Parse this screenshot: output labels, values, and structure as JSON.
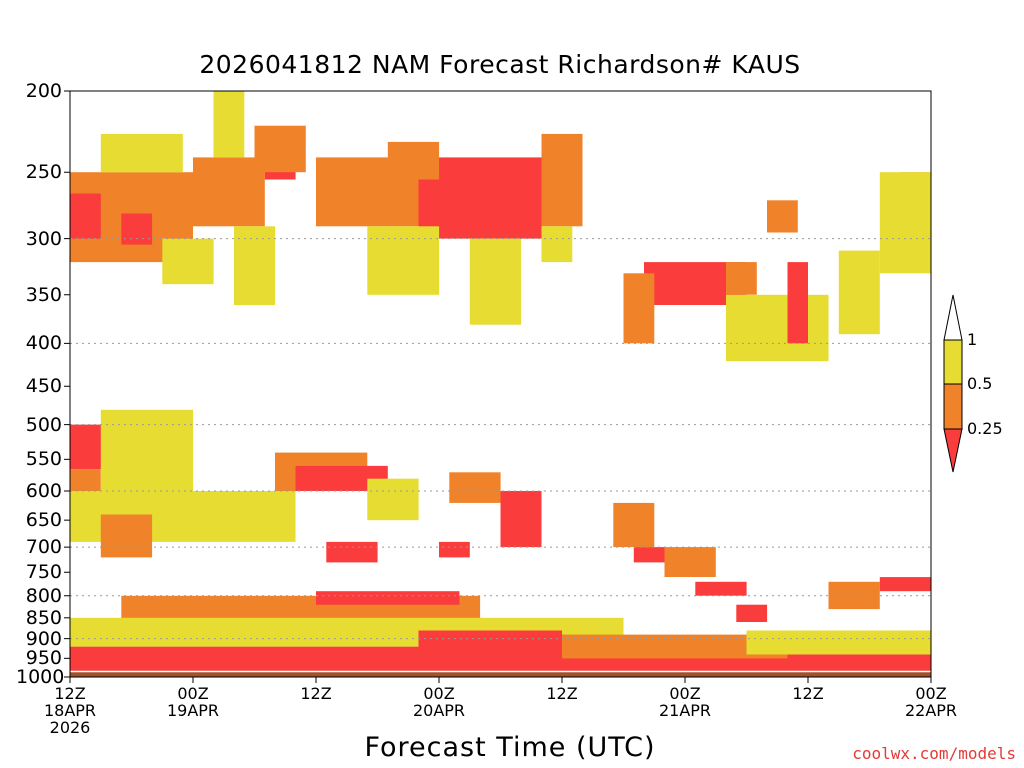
{
  "chart_data": {
    "type": "heatmap",
    "title": "2026041812 NAM Forecast Richardson# KAUS",
    "xlabel": "Forecast Time (UTC)",
    "ylabel": "",
    "y_scale": "log-pressure",
    "ylim": [
      1000,
      200
    ],
    "y_ticks": [
      "200",
      "250",
      "300",
      "350",
      "400",
      "450",
      "500",
      "550",
      "600",
      "650",
      "700",
      "750",
      "800",
      "850",
      "900",
      "950",
      "1000"
    ],
    "y_gridlines": [
      300,
      400,
      500,
      600,
      700,
      800,
      900
    ],
    "x_range_hours": [
      0,
      84
    ],
    "x_ticks": [
      {
        "hour": 0,
        "line1": "12Z",
        "line2": "18APR",
        "line3": "2026"
      },
      {
        "hour": 12,
        "line1": "00Z",
        "line2": "19APR",
        "line3": ""
      },
      {
        "hour": 24,
        "line1": "12Z",
        "line2": "",
        "line3": ""
      },
      {
        "hour": 36,
        "line1": "00Z",
        "line2": "20APR",
        "line3": ""
      },
      {
        "hour": 48,
        "line1": "12Z",
        "line2": "",
        "line3": ""
      },
      {
        "hour": 60,
        "line1": "00Z",
        "line2": "21APR",
        "line3": ""
      },
      {
        "hour": 72,
        "line1": "12Z",
        "line2": "",
        "line3": ""
      },
      {
        "hour": 84,
        "line1": "00Z",
        "line2": "22APR",
        "line3": ""
      }
    ],
    "colorbar": {
      "levels": [
        "1",
        "0.5",
        "0.25"
      ],
      "bins": [
        {
          "range": "0.5-1",
          "color": "#e6dc32"
        },
        {
          "range": "0.25-0.5",
          "color": "#f0822a"
        },
        {
          "range": "<0.25",
          "color": "#fa3c3c"
        }
      ]
    },
    "ground_color": "#a0522d",
    "regions": [
      {
        "class": 2,
        "t0": 0,
        "t1": 12,
        "p0": 250,
        "p1": 320
      },
      {
        "class": 3,
        "t0": 0,
        "t1": 3,
        "p0": 265,
        "p1": 300
      },
      {
        "class": 3,
        "t0": 5,
        "t1": 8,
        "p0": 280,
        "p1": 305
      },
      {
        "class": 1,
        "t0": 3,
        "t1": 11,
        "p0": 225,
        "p1": 250
      },
      {
        "class": 1,
        "t0": 9,
        "t1": 14,
        "p0": 300,
        "p1": 340
      },
      {
        "class": 2,
        "t0": 12,
        "t1": 19,
        "p0": 240,
        "p1": 290
      },
      {
        "class": 1,
        "t0": 14,
        "t1": 17,
        "p0": 200,
        "p1": 240
      },
      {
        "class": 3,
        "t0": 19,
        "t1": 22,
        "p0": 225,
        "p1": 255
      },
      {
        "class": 2,
        "t0": 18,
        "t1": 23,
        "p0": 220,
        "p1": 250
      },
      {
        "class": 1,
        "t0": 16,
        "t1": 20,
        "p0": 290,
        "p1": 360
      },
      {
        "class": 2,
        "t0": 24,
        "t1": 34,
        "p0": 240,
        "p1": 290
      },
      {
        "class": 3,
        "t0": 34,
        "t1": 46,
        "p0": 240,
        "p1": 300
      },
      {
        "class": 2,
        "t0": 31,
        "t1": 36,
        "p0": 230,
        "p1": 255
      },
      {
        "class": 1,
        "t0": 29,
        "t1": 36,
        "p0": 290,
        "p1": 350
      },
      {
        "class": 1,
        "t0": 39,
        "t1": 44,
        "p0": 300,
        "p1": 380
      },
      {
        "class": 2,
        "t0": 46,
        "t1": 50,
        "p0": 225,
        "p1": 290
      },
      {
        "class": 1,
        "t0": 46,
        "t1": 49,
        "p0": 290,
        "p1": 320
      },
      {
        "class": 3,
        "t0": 56,
        "t1": 66,
        "p0": 320,
        "p1": 360
      },
      {
        "class": 2,
        "t0": 54,
        "t1": 57,
        "p0": 330,
        "p1": 400
      },
      {
        "class": 2,
        "t0": 64,
        "t1": 67,
        "p0": 320,
        "p1": 350
      },
      {
        "class": 1,
        "t0": 64,
        "t1": 74,
        "p0": 350,
        "p1": 420
      },
      {
        "class": 3,
        "t0": 70,
        "t1": 72,
        "p0": 320,
        "p1": 400
      },
      {
        "class": 2,
        "t0": 68,
        "t1": 71,
        "p0": 270,
        "p1": 295
      },
      {
        "class": 1,
        "t0": 75,
        "t1": 79,
        "p0": 310,
        "p1": 390
      },
      {
        "class": 2,
        "t0": 81,
        "t1": 84,
        "p0": 250,
        "p1": 290
      },
      {
        "class": 1,
        "t0": 79,
        "t1": 84,
        "p0": 250,
        "p1": 330
      },
      {
        "class": 3,
        "t0": 0,
        "t1": 5,
        "p0": 500,
        "p1": 565
      },
      {
        "class": 2,
        "t0": 0,
        "t1": 3,
        "p0": 565,
        "p1": 640
      },
      {
        "class": 1,
        "t0": 3,
        "t1": 12,
        "p0": 480,
        "p1": 610
      },
      {
        "class": 1,
        "t0": 0,
        "t1": 22,
        "p0": 600,
        "p1": 690
      },
      {
        "class": 2,
        "t0": 3,
        "t1": 8,
        "p0": 640,
        "p1": 720
      },
      {
        "class": 2,
        "t0": 20,
        "t1": 29,
        "p0": 540,
        "p1": 600
      },
      {
        "class": 3,
        "t0": 22,
        "t1": 31,
        "p0": 560,
        "p1": 600
      },
      {
        "class": 1,
        "t0": 29,
        "t1": 34,
        "p0": 580,
        "p1": 650
      },
      {
        "class": 3,
        "t0": 25,
        "t1": 30,
        "p0": 690,
        "p1": 730
      },
      {
        "class": 2,
        "t0": 37,
        "t1": 42,
        "p0": 570,
        "p1": 620
      },
      {
        "class": 3,
        "t0": 42,
        "t1": 46,
        "p0": 600,
        "p1": 700
      },
      {
        "class": 3,
        "t0": 36,
        "t1": 39,
        "p0": 690,
        "p1": 720
      },
      {
        "class": 2,
        "t0": 53,
        "t1": 57,
        "p0": 620,
        "p1": 700
      },
      {
        "class": 3,
        "t0": 55,
        "t1": 58,
        "p0": 700,
        "p1": 730
      },
      {
        "class": 2,
        "t0": 58,
        "t1": 63,
        "p0": 700,
        "p1": 760
      },
      {
        "class": 3,
        "t0": 61,
        "t1": 66,
        "p0": 770,
        "p1": 800
      },
      {
        "class": 3,
        "t0": 65,
        "t1": 68,
        "p0": 820,
        "p1": 860
      },
      {
        "class": 2,
        "t0": 74,
        "t1": 79,
        "p0": 770,
        "p1": 830
      },
      {
        "class": 3,
        "t0": 79,
        "t1": 84,
        "p0": 760,
        "p1": 790
      },
      {
        "class": 3,
        "t0": 0,
        "t1": 84,
        "p0": 920,
        "p1": 990
      },
      {
        "class": 2,
        "t0": 5,
        "t1": 40,
        "p0": 800,
        "p1": 880
      },
      {
        "class": 3,
        "t0": 24,
        "t1": 38,
        "p0": 790,
        "p1": 820
      },
      {
        "class": 1,
        "t0": 0,
        "t1": 54,
        "p0": 850,
        "p1": 920
      },
      {
        "class": 3,
        "t0": 34,
        "t1": 48,
        "p0": 880,
        "p1": 960
      },
      {
        "class": 2,
        "t0": 48,
        "t1": 70,
        "p0": 890,
        "p1": 950
      },
      {
        "class": 1,
        "t0": 66,
        "t1": 84,
        "p0": 880,
        "p1": 940
      }
    ]
  }
}
